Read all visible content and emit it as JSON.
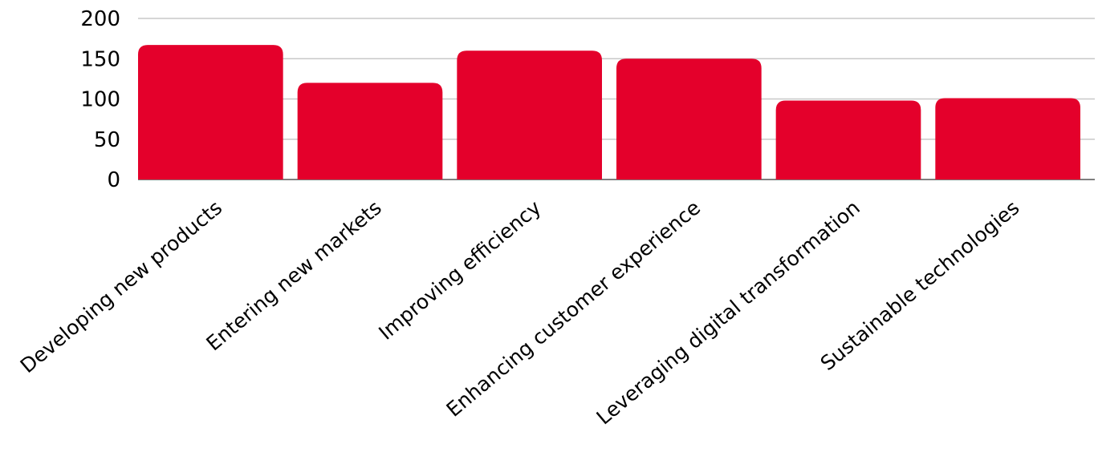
{
  "chart_data": {
    "type": "bar",
    "title": "",
    "xlabel": "",
    "ylabel": "",
    "categories": [
      "Developing new products",
      "Entering new markets",
      "Improving efficiency",
      "Enhancing customer experience",
      "Leveraging digital transformation",
      "Sustainable technologies"
    ],
    "values": [
      167,
      120,
      160,
      150,
      98,
      101
    ],
    "ylim": [
      0,
      200
    ],
    "yticks": [
      "0",
      "50",
      "100",
      "150",
      "200"
    ],
    "grid": true,
    "legend": "none",
    "colors": {
      "bar": "#e4002b"
    }
  }
}
